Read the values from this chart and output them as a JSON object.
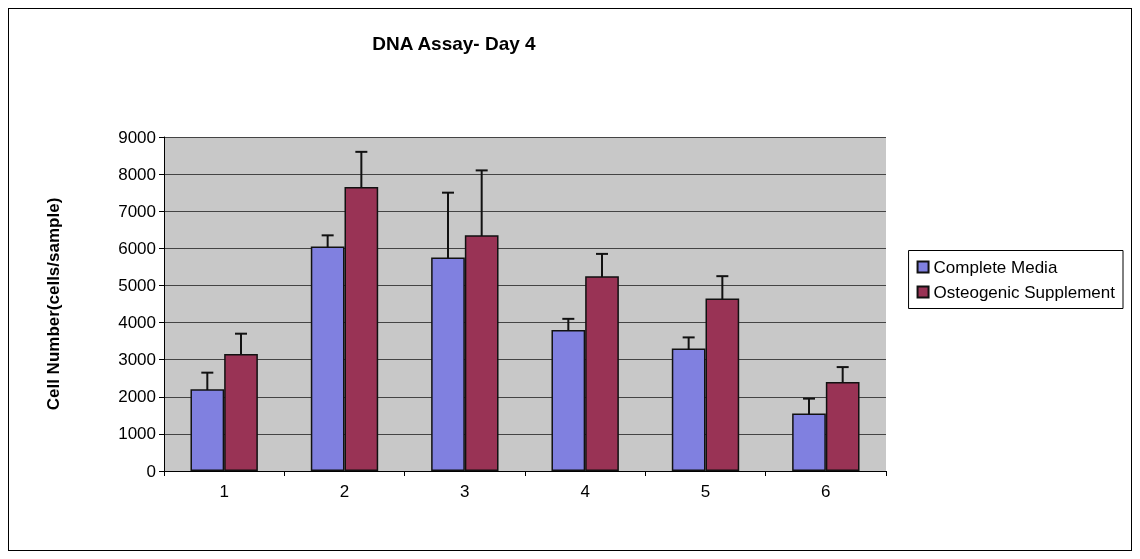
{
  "chart_data": {
    "type": "bar",
    "title": "DNA Assay- Day 4",
    "ylabel": "Cell Number(cells/sample)",
    "categories": [
      "1",
      "2",
      "3",
      "4",
      "5",
      "6"
    ],
    "series": [
      {
        "name": "Complete Media",
        "color": "#8080e0",
        "values": [
          2200,
          6050,
          5750,
          3800,
          3300,
          1550
        ],
        "errors": [
          450,
          300,
          1750,
          300,
          300,
          400
        ]
      },
      {
        "name": "Osteogenic Supplement",
        "color": "#993355",
        "values": [
          3150,
          7650,
          6350,
          5250,
          4650,
          2400
        ],
        "errors": [
          550,
          950,
          1750,
          600,
          600,
          400
        ]
      }
    ],
    "ylim": [
      0,
      9000
    ],
    "yticks": [
      0,
      1000,
      2000,
      3000,
      4000,
      5000,
      6000,
      7000,
      8000,
      9000
    ],
    "grid": "y",
    "legend": "right"
  }
}
